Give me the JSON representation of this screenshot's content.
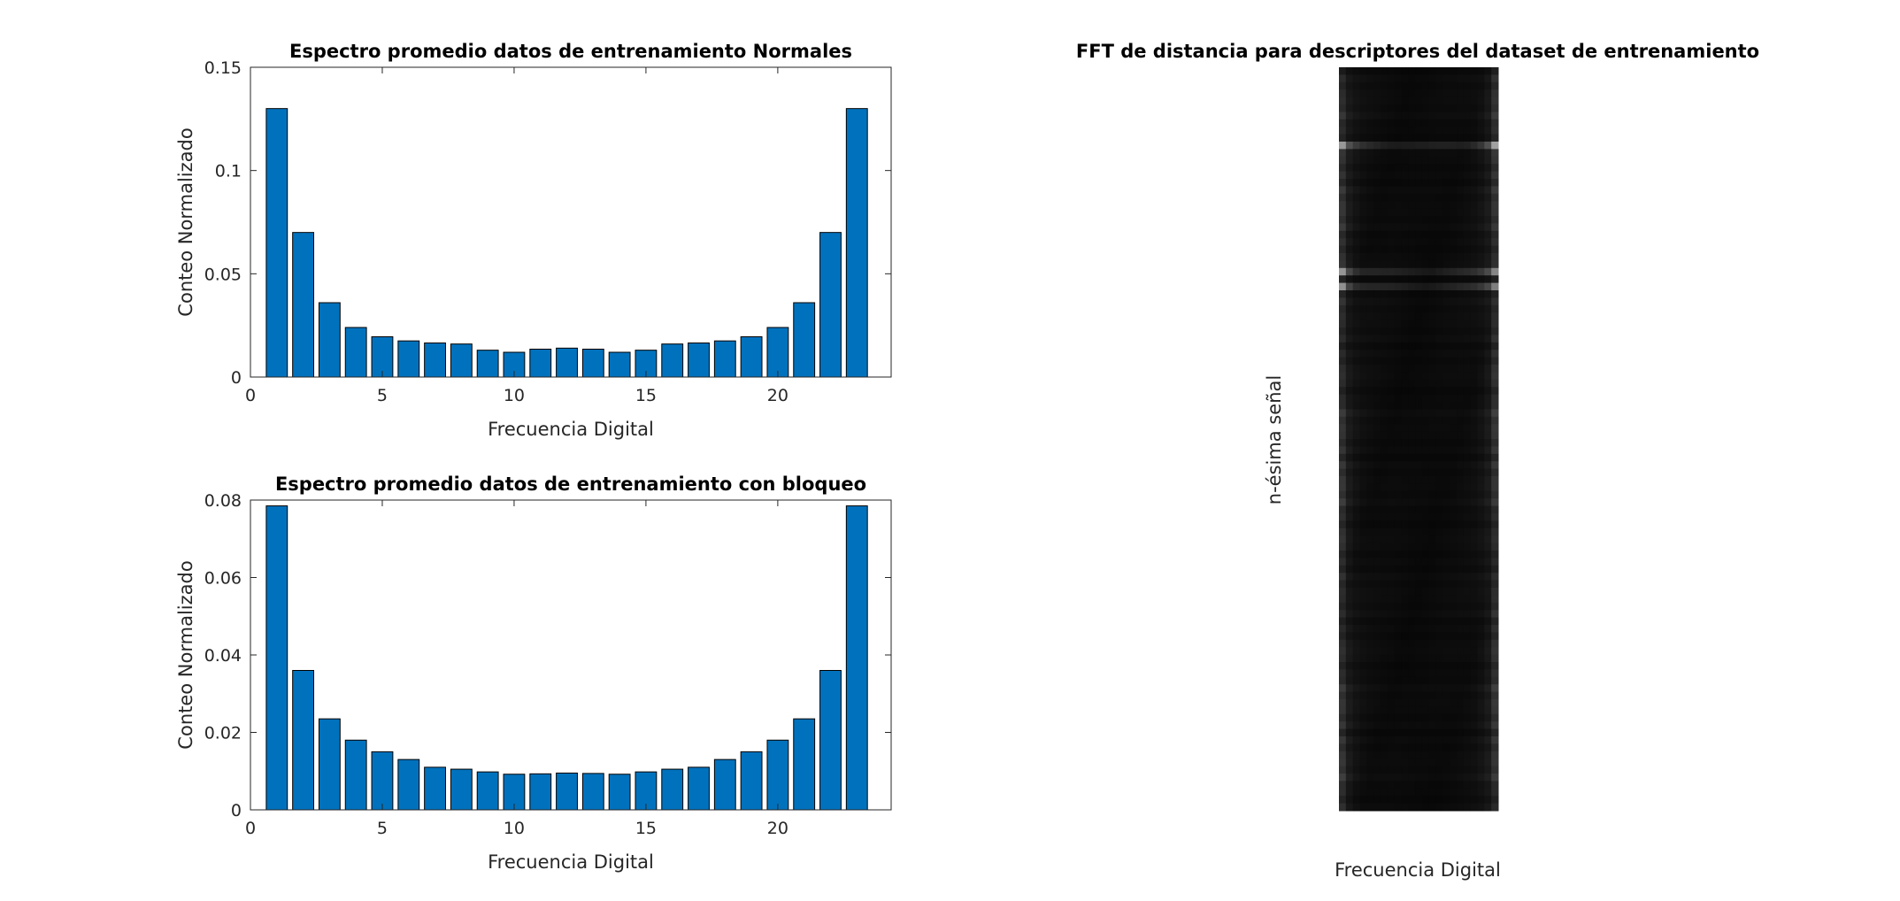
{
  "chart_data": [
    {
      "type": "bar",
      "title": "Espectro promedio datos de entrenamiento Normales",
      "xlabel": "Frecuencia Digital",
      "ylabel": "Conteo Normalizado",
      "xlim": [
        0,
        24.3
      ],
      "ylim": [
        0,
        0.15
      ],
      "xticks": [
        0,
        5,
        10,
        15,
        20
      ],
      "xtick_labels": [
        "0",
        "5",
        "10",
        "15",
        "20"
      ],
      "yticks": [
        0,
        0.05,
        0.1,
        0.15
      ],
      "ytick_labels": [
        "0",
        "0.05",
        "0.1",
        "0.15"
      ],
      "x": [
        1,
        2,
        3,
        4,
        5,
        6,
        7,
        8,
        9,
        10,
        11,
        12,
        13,
        14,
        15,
        16,
        17,
        18,
        19,
        20,
        21,
        22,
        23
      ],
      "values": [
        0.13,
        0.07,
        0.036,
        0.024,
        0.0195,
        0.0175,
        0.0165,
        0.016,
        0.013,
        0.012,
        0.0135,
        0.014,
        0.0135,
        0.012,
        0.013,
        0.016,
        0.0165,
        0.0175,
        0.0195,
        0.024,
        0.036,
        0.07,
        0.13
      ],
      "bar_color": "#0072bd"
    },
    {
      "type": "bar",
      "title": "Espectro promedio datos de entrenamiento con bloqueo",
      "xlabel": "Frecuencia Digital",
      "ylabel": "Conteo Normalizado",
      "xlim": [
        0,
        24.3
      ],
      "ylim": [
        0,
        0.08
      ],
      "xticks": [
        0,
        5,
        10,
        15,
        20
      ],
      "xtick_labels": [
        "0",
        "5",
        "10",
        "15",
        "20"
      ],
      "yticks": [
        0,
        0.02,
        0.04,
        0.06,
        0.08
      ],
      "ytick_labels": [
        "0",
        "0.02",
        "0.04",
        "0.06",
        "0.08"
      ],
      "x": [
        1,
        2,
        3,
        4,
        5,
        6,
        7,
        8,
        9,
        10,
        11,
        12,
        13,
        14,
        15,
        16,
        17,
        18,
        19,
        20,
        21,
        22,
        23
      ],
      "values": [
        0.0785,
        0.036,
        0.0235,
        0.018,
        0.015,
        0.013,
        0.011,
        0.0105,
        0.0098,
        0.0092,
        0.0093,
        0.0095,
        0.0094,
        0.0092,
        0.0098,
        0.0105,
        0.011,
        0.013,
        0.015,
        0.018,
        0.0235,
        0.036,
        0.0785
      ],
      "bar_color": "#0072bd"
    },
    {
      "type": "heatmap",
      "title": "FFT de distancia para descriptores del dataset de entrenamiento",
      "xlabel": "Frecuencia Digital",
      "ylabel": "n-ésima señal",
      "colormap": "gray",
      "columns": 23,
      "rows": 100,
      "bright_rows": [
        10,
        27,
        29
      ],
      "column_profile": [
        0.28,
        0.14,
        0.1,
        0.08,
        0.07,
        0.065,
        0.06,
        0.058,
        0.055,
        0.052,
        0.05,
        0.05,
        0.05,
        0.052,
        0.055,
        0.058,
        0.06,
        0.065,
        0.07,
        0.08,
        0.1,
        0.14,
        0.28
      ]
    }
  ]
}
